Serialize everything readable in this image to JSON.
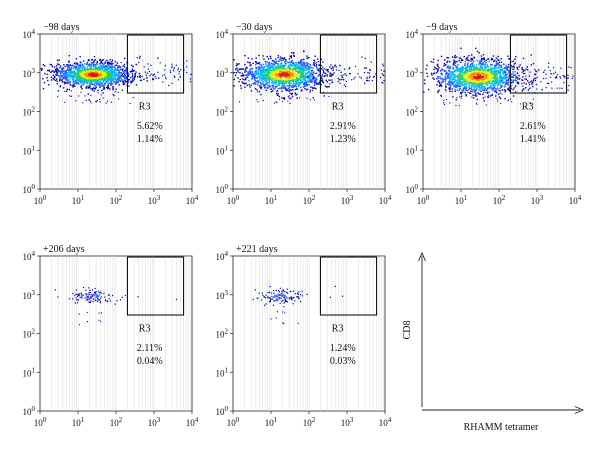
{
  "chart_data": {
    "type": "scatter",
    "x_axis": {
      "scale": "log",
      "range": [
        1,
        10000
      ],
      "ticks": [
        {
          "base": "10",
          "exp": "0"
        },
        {
          "base": "10",
          "exp": "1"
        },
        {
          "base": "10",
          "exp": "2"
        },
        {
          "base": "10",
          "exp": "3"
        },
        {
          "base": "10",
          "exp": "4"
        }
      ]
    },
    "y_axis": {
      "scale": "log",
      "range": [
        1,
        10000
      ],
      "ticks": [
        {
          "base": "10",
          "exp": "0"
        },
        {
          "base": "10",
          "exp": "1"
        },
        {
          "base": "10",
          "exp": "2"
        },
        {
          "base": "10",
          "exp": "3"
        },
        {
          "base": "10",
          "exp": "4"
        }
      ]
    },
    "grid": "vertical lines",
    "region_label": "R3",
    "gate": {
      "x_range": [
        200,
        6000
      ],
      "y_range": [
        300,
        10000
      ]
    },
    "density_colors": [
      "#0000b4",
      "#1f5fff",
      "#00b8ff",
      "#20d070",
      "#f0f000",
      "#ff8c00",
      "#e01010"
    ],
    "panels": [
      {
        "title": "−98 days",
        "stat_top": "5.62%",
        "stat_bottom": "1.14%",
        "density": "high",
        "cluster": {
          "x_log_center": 1.4,
          "y_log_center": 2.95,
          "x_log_spread": 0.5,
          "y_log_spread": 0.16
        }
      },
      {
        "title": "−30 days",
        "stat_top": "2.91%",
        "stat_bottom": "1.23%",
        "density": "high",
        "cluster": {
          "x_log_center": 1.35,
          "y_log_center": 2.95,
          "x_log_spread": 0.55,
          "y_log_spread": 0.2
        }
      },
      {
        "title": "−9 days",
        "stat_top": "2.61%",
        "stat_bottom": "1.41%",
        "density": "high",
        "cluster": {
          "x_log_center": 1.45,
          "y_log_center": 2.9,
          "x_log_spread": 0.55,
          "y_log_spread": 0.22
        }
      },
      {
        "title": "+206 days",
        "stat_top": "2.11%",
        "stat_bottom": "0.04%",
        "density": "low",
        "cluster": {
          "x_log_center": 1.35,
          "y_log_center": 2.95,
          "x_log_spread": 0.3,
          "y_log_spread": 0.1
        }
      },
      {
        "title": "+221 days",
        "stat_top": "1.24%",
        "stat_bottom": "0.03%",
        "density": "low",
        "cluster": {
          "x_log_center": 1.25,
          "y_log_center": 2.95,
          "x_log_spread": 0.3,
          "y_log_spread": 0.1
        }
      }
    ],
    "legend": {
      "y_title": "CD8",
      "x_title": "RHAMM tetramer"
    }
  }
}
